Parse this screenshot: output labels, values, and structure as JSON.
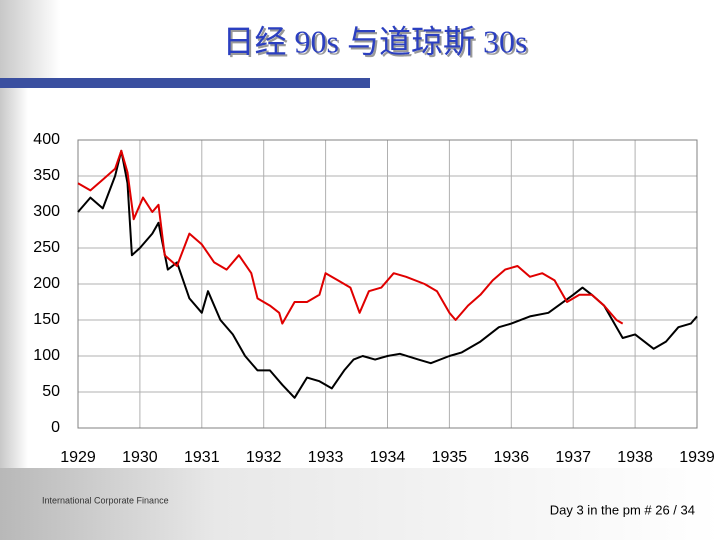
{
  "chart_data": {
    "type": "line",
    "title": "日经 90s 与道琼斯 30s",
    "xlim": [
      1929,
      1939
    ],
    "xticks": [
      1929,
      1930,
      1931,
      1932,
      1933,
      1934,
      1935,
      1936,
      1937,
      1938,
      1939
    ],
    "ylim": [
      0,
      400
    ],
    "yticks": [
      0,
      50,
      100,
      150,
      200,
      250,
      300,
      350,
      400
    ],
    "grid": true,
    "series": [
      {
        "color": "#000000",
        "x": [
          1929.0,
          1929.2,
          1929.4,
          1929.6,
          1929.7,
          1929.8,
          1929.87,
          1930.0,
          1930.2,
          1930.3,
          1930.45,
          1930.6,
          1930.8,
          1931.0,
          1931.1,
          1931.3,
          1931.5,
          1931.7,
          1931.9,
          1932.1,
          1932.3,
          1932.5,
          1932.7,
          1932.9,
          1933.1,
          1933.3,
          1933.45,
          1933.6,
          1933.8,
          1934.0,
          1934.2,
          1934.5,
          1934.7,
          1935.0,
          1935.2,
          1935.5,
          1935.8,
          1936.0,
          1936.3,
          1936.6,
          1937.0,
          1937.15,
          1937.3,
          1937.5,
          1937.7,
          1937.8,
          1938.0,
          1938.3,
          1938.5,
          1938.7,
          1938.9,
          1939.0
        ],
        "values": [
          300,
          320,
          305,
          350,
          385,
          340,
          240,
          250,
          270,
          285,
          220,
          230,
          180,
          160,
          190,
          150,
          130,
          100,
          80,
          80,
          60,
          42,
          70,
          65,
          55,
          80,
          95,
          100,
          95,
          100,
          103,
          95,
          90,
          100,
          105,
          120,
          140,
          145,
          155,
          160,
          185,
          195,
          185,
          170,
          140,
          125,
          130,
          110,
          120,
          140,
          145,
          155
        ]
      },
      {
        "color": "#e00000",
        "x": [
          1929.0,
          1929.2,
          1929.4,
          1929.6,
          1929.7,
          1929.8,
          1929.9,
          1930.05,
          1930.2,
          1930.3,
          1930.4,
          1930.6,
          1930.8,
          1931.0,
          1931.2,
          1931.4,
          1931.6,
          1931.8,
          1931.9,
          1932.1,
          1932.25,
          1932.3,
          1932.5,
          1932.7,
          1932.9,
          1933.0,
          1933.2,
          1933.4,
          1933.55,
          1933.7,
          1933.9,
          1934.1,
          1934.3,
          1934.6,
          1934.8,
          1935.0,
          1935.1,
          1935.3,
          1935.5,
          1935.7,
          1935.9,
          1936.1,
          1936.3,
          1936.5,
          1936.7,
          1936.9,
          1937.1,
          1937.3,
          1937.5,
          1937.7,
          1937.8
        ],
        "values": [
          340,
          330,
          345,
          360,
          385,
          355,
          290,
          320,
          300,
          310,
          240,
          225,
          270,
          255,
          230,
          220,
          240,
          215,
          180,
          170,
          160,
          145,
          175,
          175,
          185,
          215,
          205,
          195,
          160,
          190,
          195,
          215,
          210,
          200,
          190,
          160,
          150,
          170,
          185,
          205,
          220,
          225,
          210,
          215,
          205,
          175,
          185,
          185,
          170,
          150,
          145
        ]
      }
    ]
  },
  "footer": {
    "left": "International Corporate Finance",
    "right": "Day 3 in the pm # 26 / 34"
  }
}
